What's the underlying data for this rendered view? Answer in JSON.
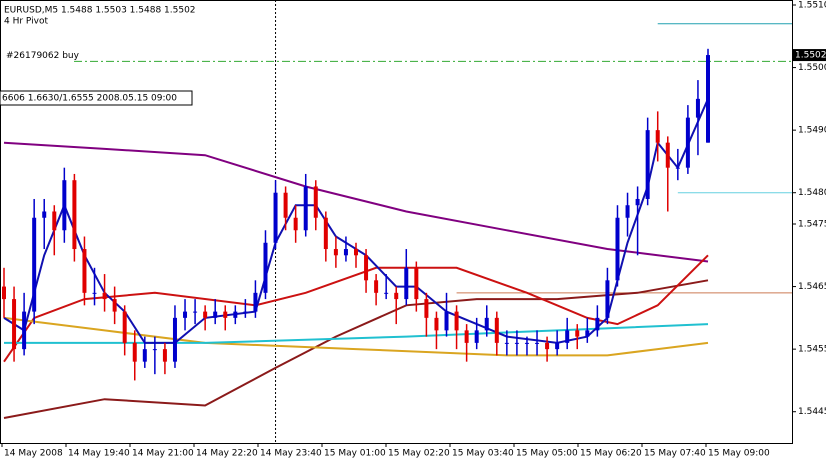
{
  "chart_data": {
    "type": "candlestick",
    "header": "EURUSD,M5  1.5488 1.5503 1.5488 1.5502",
    "subtitle": "4 Hr Pivot",
    "info_box": "6606 1.6630/1.6555 2008.05.15 09:00",
    "ylim": [
      1.544,
      1.55108
    ],
    "yticks": [
      {
        "value": 1.551,
        "label": "1.5510"
      },
      {
        "value": 1.55,
        "label": "1.5500"
      },
      {
        "value": 1.549,
        "label": "1.5490"
      },
      {
        "value": 1.548,
        "label": "1.5480"
      },
      1.5475,
      1.5465,
      1.5455,
      1.5445
    ],
    "current_price": 1.5502,
    "x_labels": [
      "14 May 2008",
      "14 May 19:40",
      "14 May 21:00",
      "14 May 22:20",
      "14 May 23:40",
      "15 May 01:00",
      "15 May 02:20",
      "15 May 03:40",
      "15 May 05:00",
      "15 May 06:20",
      "15 May 07:40",
      "15 May 09:00"
    ],
    "up_color": "#0000cc",
    "down_color": "#e00000",
    "candles": [
      [
        1.5465,
        1.5468,
        1.546,
        1.5463
      ],
      [
        1.5463,
        1.5465,
        1.5453,
        1.5455
      ],
      [
        1.5455,
        1.5464,
        1.5454,
        1.5461
      ],
      [
        1.5461,
        1.5479,
        1.5459,
        1.5476
      ],
      [
        1.5476,
        1.5479,
        1.5471,
        1.5477
      ],
      [
        1.5477,
        1.5478,
        1.547,
        1.5474
      ],
      [
        1.5474,
        1.5484,
        1.5472,
        1.5482
      ],
      [
        1.5482,
        1.5483,
        1.5469,
        1.5471
      ],
      [
        1.5471,
        1.5473,
        1.5462,
        1.5464
      ],
      [
        1.5464,
        1.5468,
        1.5462,
        1.5464
      ],
      [
        1.5464,
        1.5467,
        1.5461,
        1.5463
      ],
      [
        1.5463,
        1.5465,
        1.5459,
        1.5461
      ],
      [
        1.5461,
        1.5462,
        1.5454,
        1.5456
      ],
      [
        1.5456,
        1.5458,
        1.545,
        1.5453
      ],
      [
        1.5453,
        1.5457,
        1.5452,
        1.5455
      ],
      [
        1.5455,
        1.5457,
        1.5451,
        1.5455
      ],
      [
        1.5455,
        1.5456,
        1.5451,
        1.5453
      ],
      [
        1.5453,
        1.5462,
        1.5452,
        1.546
      ],
      [
        1.546,
        1.5463,
        1.5458,
        1.5461
      ],
      [
        1.5461,
        1.5463,
        1.5459,
        1.5461
      ],
      [
        1.5461,
        1.5462,
        1.5458,
        1.546
      ],
      [
        1.546,
        1.5463,
        1.5459,
        1.5461
      ],
      [
        1.5461,
        1.5462,
        1.5458,
        1.546
      ],
      [
        1.546,
        1.5462,
        1.5459,
        1.5461
      ],
      [
        1.5461,
        1.5463,
        1.546,
        1.5461
      ],
      [
        1.5461,
        1.5466,
        1.546,
        1.5464
      ],
      [
        1.5464,
        1.5474,
        1.5463,
        1.5472
      ],
      [
        1.5472,
        1.5482,
        1.5471,
        1.548
      ],
      [
        1.548,
        1.5481,
        1.5474,
        1.5476
      ],
      [
        1.5476,
        1.5478,
        1.5472,
        1.5474
      ],
      [
        1.5474,
        1.5483,
        1.5473,
        1.5481
      ],
      [
        1.5481,
        1.5482,
        1.5474,
        1.5476
      ],
      [
        1.5476,
        1.5477,
        1.5469,
        1.5471
      ],
      [
        1.5471,
        1.5473,
        1.5468,
        1.547
      ],
      [
        1.547,
        1.5473,
        1.5469,
        1.5471
      ],
      [
        1.5471,
        1.5472,
        1.5468,
        1.547
      ],
      [
        1.547,
        1.5471,
        1.5464,
        1.5466
      ],
      [
        1.5466,
        1.5467,
        1.5462,
        1.5464
      ],
      [
        1.5464,
        1.5467,
        1.5463,
        1.5464
      ],
      [
        1.5464,
        1.5465,
        1.5459,
        1.5463
      ],
      [
        1.5463,
        1.5471,
        1.5462,
        1.5468
      ],
      [
        1.5468,
        1.5469,
        1.5461,
        1.5463
      ],
      [
        1.5463,
        1.5464,
        1.5457,
        1.546
      ],
      [
        1.546,
        1.5461,
        1.5455,
        1.5458
      ],
      [
        1.5458,
        1.5464,
        1.5457,
        1.5461
      ],
      [
        1.5461,
        1.5462,
        1.5455,
        1.5458
      ],
      [
        1.5458,
        1.5459,
        1.5453,
        1.5456
      ],
      [
        1.5456,
        1.546,
        1.5455,
        1.5458
      ],
      [
        1.5458,
        1.5462,
        1.5457,
        1.546
      ],
      [
        1.546,
        1.5461,
        1.5454,
        1.5456
      ],
      [
        1.5456,
        1.5458,
        1.5454,
        1.5456
      ],
      [
        1.5456,
        1.5458,
        1.5454,
        1.5456
      ],
      [
        1.5456,
        1.5457,
        1.5454,
        1.5456
      ],
      [
        1.5456,
        1.5458,
        1.5454,
        1.5456
      ],
      [
        1.5456,
        1.5457,
        1.5453,
        1.5455
      ],
      [
        1.5455,
        1.5458,
        1.5454,
        1.5456
      ],
      [
        1.5456,
        1.546,
        1.5455,
        1.5458
      ],
      [
        1.5458,
        1.5459,
        1.5455,
        1.5457
      ],
      [
        1.5457,
        1.546,
        1.5456,
        1.5458
      ],
      [
        1.5458,
        1.5462,
        1.5457,
        1.546
      ],
      [
        1.546,
        1.5468,
        1.5459,
        1.5466
      ],
      [
        1.5466,
        1.5478,
        1.5465,
        1.5476
      ],
      [
        1.5476,
        1.548,
        1.5473,
        1.5478
      ],
      [
        1.5478,
        1.5481,
        1.547,
        1.5479
      ],
      [
        1.5479,
        1.5492,
        1.5478,
        1.549
      ],
      [
        1.549,
        1.5493,
        1.5485,
        1.5488
      ],
      [
        1.5488,
        1.5489,
        1.5477,
        1.5484
      ],
      [
        1.5484,
        1.5487,
        1.5482,
        1.5484
      ],
      [
        1.5484,
        1.5494,
        1.5483,
        1.5492
      ],
      [
        1.5492,
        1.5498,
        1.5486,
        1.5495
      ],
      [
        1.5488,
        1.5503,
        1.5488,
        1.5502
      ]
    ],
    "lines": [
      {
        "color": "#800080",
        "x": [
          0,
          10,
          20,
          30,
          40,
          50,
          60,
          70
        ],
        "values": [
          1.5488,
          1.5487,
          1.5486,
          1.5481,
          1.5477,
          1.5474,
          1.5471,
          1.5469
        ]
      },
      {
        "color": "#8b1a1a",
        "x": [
          0,
          10,
          20,
          27,
          33,
          40,
          47,
          55,
          63,
          70
        ],
        "values": [
          1.5444,
          1.5447,
          1.5446,
          1.5452,
          1.5457,
          1.5462,
          1.5463,
          1.5463,
          1.5464,
          1.5466
        ]
      },
      {
        "color": "#cc1111",
        "x": [
          0,
          3,
          8,
          15,
          25,
          30,
          37,
          45,
          52,
          58,
          61,
          65,
          70
        ],
        "values": [
          1.5453,
          1.546,
          1.5463,
          1.5464,
          1.5462,
          1.5464,
          1.5468,
          1.5468,
          1.5464,
          1.546,
          1.5459,
          1.5462,
          1.547
        ]
      },
      {
        "color": "#daa520",
        "x": [
          0,
          10,
          20,
          35,
          50,
          60,
          65,
          70
        ],
        "values": [
          1.546,
          1.5458,
          1.5456,
          1.5455,
          1.5454,
          1.5454,
          1.5455,
          1.5456
        ]
      },
      {
        "color": "#20c0d0",
        "x": [
          0,
          20,
          40,
          55,
          70
        ],
        "values": [
          1.5456,
          1.5456,
          1.5457,
          1.5458,
          1.5459
        ]
      },
      {
        "color": "#1010b0",
        "x": [
          0,
          2,
          4,
          6,
          8,
          10,
          12,
          14,
          17,
          20,
          25,
          27,
          29,
          31,
          33,
          36,
          39,
          41,
          44,
          47,
          50,
          55,
          58,
          60,
          62,
          64,
          65,
          67,
          70
        ],
        "values": [
          1.546,
          1.5458,
          1.547,
          1.5478,
          1.547,
          1.5464,
          1.5461,
          1.5456,
          1.5456,
          1.546,
          1.5461,
          1.5472,
          1.5478,
          1.5478,
          1.5473,
          1.547,
          1.5465,
          1.5465,
          1.5461,
          1.5459,
          1.5457,
          1.5456,
          1.5457,
          1.546,
          1.5472,
          1.5481,
          1.5488,
          1.5484,
          1.5495
        ]
      }
    ],
    "order_line": {
      "label": "#26179062 buy",
      "value": 1.5501,
      "color": "#33aa33"
    },
    "levels": [
      {
        "value": 1.5507,
        "start": 65,
        "color": "#20a0b0"
      },
      {
        "value": 1.548,
        "start": 67,
        "color": "#66d0e0"
      },
      {
        "value": 1.5464,
        "start": 45,
        "color": "#cc7a55"
      }
    ],
    "vline_index": 27
  }
}
